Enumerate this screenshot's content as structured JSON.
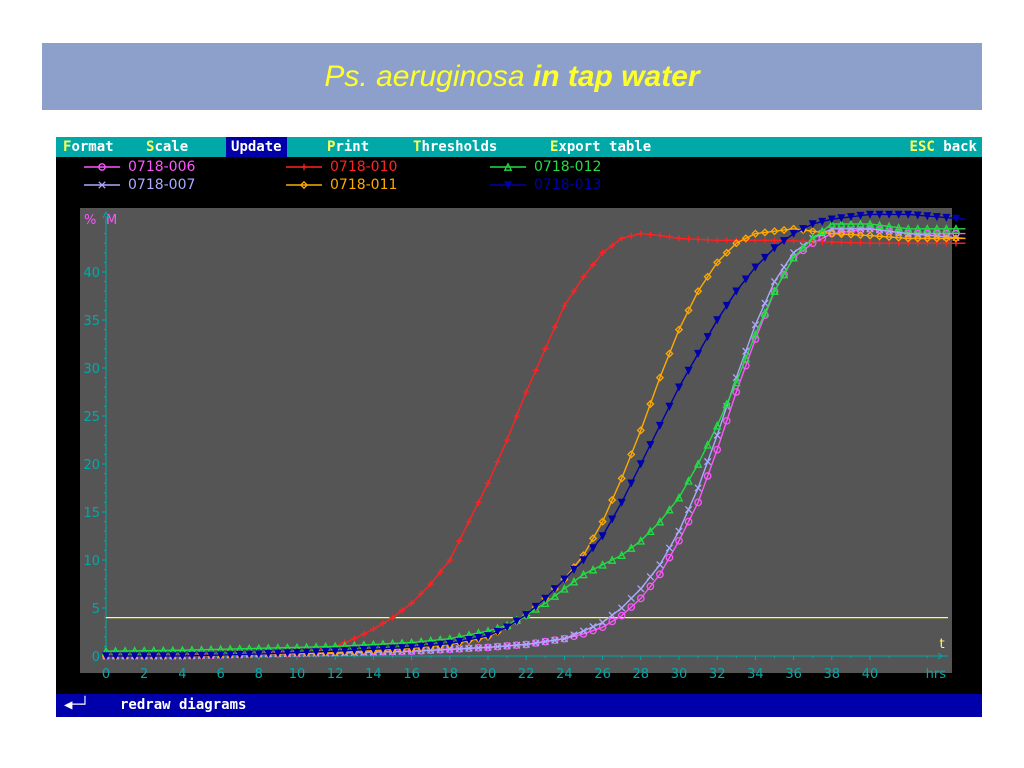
{
  "title": {
    "italic": "Ps. aeruginosa",
    "bold": "in tap water"
  },
  "menu": {
    "items": [
      {
        "hot": "F",
        "rest": "ormat"
      },
      {
        "hot": "S",
        "rest": "cale"
      },
      {
        "hot": "U",
        "rest": "pdate"
      },
      {
        "hot": "P",
        "rest": "rint"
      },
      {
        "hot": "T",
        "rest": "hresholds"
      },
      {
        "hot": "E",
        "rest": "xport table"
      }
    ],
    "active_index": 2,
    "right": {
      "hot": "ESC",
      "rest": " back"
    }
  },
  "status": {
    "text": "redraw diagrams"
  },
  "chart_data": {
    "type": "line",
    "x_unit": "hrs",
    "x_end_label": "t",
    "y_labels": [
      "%",
      "M"
    ],
    "xlim": [
      0,
      45
    ],
    "ylim": [
      0,
      45
    ],
    "x_ticks": [
      0,
      2,
      4,
      6,
      8,
      10,
      12,
      14,
      16,
      18,
      20,
      22,
      24,
      26,
      28,
      30,
      32,
      34,
      36,
      38,
      40
    ],
    "y_ticks": [
      0,
      5,
      10,
      15,
      20,
      25,
      30,
      35,
      40
    ],
    "threshold": 4,
    "colors": {
      "background": "#555555",
      "axis": "#00aaaa",
      "threshold": "#ffff55"
    },
    "series": [
      {
        "name": "0718-006",
        "color": "#ff55ff",
        "marker": "circle",
        "points": [
          [
            0,
            0
          ],
          [
            4,
            0
          ],
          [
            8,
            0.2
          ],
          [
            12,
            0.4
          ],
          [
            16,
            0.5
          ],
          [
            18,
            0.7
          ],
          [
            20,
            0.9
          ],
          [
            22,
            1.2
          ],
          [
            24,
            1.8
          ],
          [
            25,
            2.3
          ],
          [
            26,
            3.0
          ],
          [
            27,
            4.2
          ],
          [
            28,
            6.0
          ],
          [
            29,
            8.5
          ],
          [
            30,
            12.0
          ],
          [
            31,
            16.0
          ],
          [
            32,
            21.5
          ],
          [
            33,
            27.5
          ],
          [
            34,
            33.0
          ],
          [
            35,
            38.0
          ],
          [
            36,
            41.5
          ],
          [
            37,
            43.0
          ],
          [
            38,
            44.0
          ],
          [
            40,
            44.5
          ],
          [
            42,
            44.0
          ],
          [
            45,
            44.0
          ]
        ]
      },
      {
        "name": "0718-007",
        "color": "#aaaaff",
        "marker": "x",
        "points": [
          [
            0,
            0
          ],
          [
            4,
            0
          ],
          [
            8,
            0.2
          ],
          [
            12,
            0.3
          ],
          [
            16,
            0.5
          ],
          [
            18,
            0.7
          ],
          [
            20,
            0.9
          ],
          [
            22,
            1.2
          ],
          [
            24,
            1.8
          ],
          [
            25,
            2.6
          ],
          [
            26,
            3.5
          ],
          [
            27,
            5.0
          ],
          [
            28,
            7.0
          ],
          [
            29,
            9.5
          ],
          [
            30,
            13.0
          ],
          [
            31,
            17.5
          ],
          [
            32,
            23.0
          ],
          [
            33,
            29.0
          ],
          [
            34,
            34.5
          ],
          [
            35,
            39.0
          ],
          [
            36,
            42.0
          ],
          [
            37,
            43.5
          ],
          [
            38,
            44.5
          ],
          [
            40,
            44.5
          ],
          [
            42,
            44.0
          ],
          [
            45,
            43.5
          ]
        ]
      },
      {
        "name": "0718-010",
        "color": "#ff2222",
        "marker": "plus",
        "points": [
          [
            0,
            0
          ],
          [
            4,
            0
          ],
          [
            8,
            0.2
          ],
          [
            10,
            0.4
          ],
          [
            12,
            1.0
          ],
          [
            13,
            1.8
          ],
          [
            14,
            2.8
          ],
          [
            15,
            4.0
          ],
          [
            16,
            5.5
          ],
          [
            17,
            7.5
          ],
          [
            18,
            10.0
          ],
          [
            19,
            14.0
          ],
          [
            20,
            18.0
          ],
          [
            21,
            22.5
          ],
          [
            22,
            27.5
          ],
          [
            23,
            32.0
          ],
          [
            24,
            36.5
          ],
          [
            25,
            39.5
          ],
          [
            26,
            42.0
          ],
          [
            27,
            43.5
          ],
          [
            28,
            44.0
          ],
          [
            29,
            43.8
          ],
          [
            30,
            43.5
          ],
          [
            32,
            43.3
          ],
          [
            35,
            43.3
          ],
          [
            40,
            43.0
          ],
          [
            45,
            43.0
          ]
        ]
      },
      {
        "name": "0718-011",
        "color": "#ffaa00",
        "marker": "diamond",
        "points": [
          [
            0,
            0
          ],
          [
            4,
            0
          ],
          [
            8,
            0.2
          ],
          [
            12,
            0.4
          ],
          [
            16,
            0.8
          ],
          [
            18,
            1.2
          ],
          [
            20,
            2.0
          ],
          [
            21,
            3.0
          ],
          [
            22,
            4.2
          ],
          [
            23,
            6.0
          ],
          [
            24,
            8.0
          ],
          [
            25,
            10.5
          ],
          [
            26,
            14.0
          ],
          [
            27,
            18.5
          ],
          [
            28,
            23.5
          ],
          [
            29,
            29.0
          ],
          [
            30,
            34.0
          ],
          [
            31,
            38.0
          ],
          [
            32,
            41.0
          ],
          [
            33,
            43.0
          ],
          [
            34,
            44.0
          ],
          [
            36,
            44.5
          ],
          [
            38,
            44.0
          ],
          [
            40,
            43.8
          ],
          [
            42,
            43.5
          ],
          [
            45,
            43.5
          ]
        ]
      },
      {
        "name": "0718-012",
        "color": "#22dd44",
        "marker": "triangle",
        "points": [
          [
            0,
            0.5
          ],
          [
            4,
            0.6
          ],
          [
            8,
            0.8
          ],
          [
            12,
            1.0
          ],
          [
            16,
            1.4
          ],
          [
            18,
            1.8
          ],
          [
            20,
            2.6
          ],
          [
            21,
            3.2
          ],
          [
            22,
            4.3
          ],
          [
            23,
            5.5
          ],
          [
            24,
            7.0
          ],
          [
            25,
            8.5
          ],
          [
            26,
            9.5
          ],
          [
            27,
            10.5
          ],
          [
            28,
            12.0
          ],
          [
            29,
            14.0
          ],
          [
            30,
            16.5
          ],
          [
            31,
            20.0
          ],
          [
            32,
            24.0
          ],
          [
            33,
            28.5
          ],
          [
            34,
            33.5
          ],
          [
            35,
            38.0
          ],
          [
            36,
            41.5
          ],
          [
            37,
            43.5
          ],
          [
            38,
            45.0
          ],
          [
            40,
            45.0
          ],
          [
            42,
            44.5
          ],
          [
            45,
            44.5
          ]
        ]
      },
      {
        "name": "0718-013",
        "color": "#0000aa",
        "marker": "triangle-down",
        "points": [
          [
            0,
            0
          ],
          [
            4,
            0
          ],
          [
            8,
            0.2
          ],
          [
            12,
            0.5
          ],
          [
            16,
            0.9
          ],
          [
            18,
            1.3
          ],
          [
            20,
            2.1
          ],
          [
            21,
            3.0
          ],
          [
            22,
            4.3
          ],
          [
            23,
            6.0
          ],
          [
            24,
            8.0
          ],
          [
            25,
            10.0
          ],
          [
            26,
            12.5
          ],
          [
            27,
            16.0
          ],
          [
            28,
            20.0
          ],
          [
            29,
            24.0
          ],
          [
            30,
            28.0
          ],
          [
            31,
            31.5
          ],
          [
            32,
            35.0
          ],
          [
            33,
            38.0
          ],
          [
            34,
            40.5
          ],
          [
            35,
            42.5
          ],
          [
            36,
            44.0
          ],
          [
            37,
            45.0
          ],
          [
            38,
            45.5
          ],
          [
            40,
            46.0
          ],
          [
            42,
            46.0
          ],
          [
            45,
            45.5
          ]
        ]
      }
    ]
  }
}
